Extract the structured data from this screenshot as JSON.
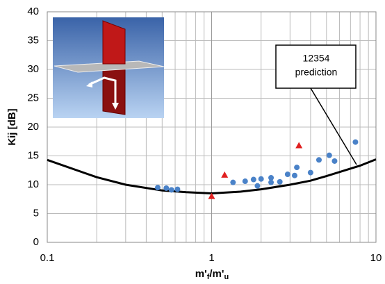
{
  "chart_data": {
    "type": "scatter-line",
    "y_label": "Kij [dB]",
    "x_label": [
      "m'",
      "f",
      "/m'",
      "u"
    ],
    "xlim": [
      0.1,
      10
    ],
    "xticks": [
      0.1,
      1,
      10
    ],
    "xminor": [
      0.2,
      0.3,
      0.4,
      0.5,
      0.6,
      0.7,
      0.8,
      0.9,
      2,
      3,
      4,
      5,
      6,
      7,
      8,
      9
    ],
    "x_log": true,
    "ylim": [
      0,
      40
    ],
    "yticks": [
      0,
      5,
      10,
      15,
      20,
      25,
      30,
      35,
      40
    ],
    "grid": true,
    "series": [
      {
        "kind": "line",
        "color": "#000000",
        "x": [
          0.1,
          0.2,
          0.3,
          0.5,
          0.7,
          1,
          1.5,
          2,
          3,
          4,
          5,
          7,
          8,
          10
        ],
        "values": [
          14.3,
          11.3,
          10.0,
          9.0,
          8.7,
          8.5,
          8.8,
          9.2,
          10.0,
          10.7,
          11.5,
          12.8,
          13.3,
          14.4
        ]
      },
      {
        "kind": "circle",
        "color": "#4a82c8",
        "x": [
          0.47,
          0.53,
          0.57,
          0.62,
          1.35,
          1.6,
          1.8,
          1.9,
          2.0,
          2.3,
          2.3,
          2.6,
          2.9,
          3.2,
          3.3,
          4.0,
          4.5,
          5.2,
          5.6,
          7.5
        ],
        "values": [
          9.5,
          9.4,
          9.1,
          9.2,
          10.4,
          10.6,
          10.9,
          9.8,
          11.0,
          11.2,
          10.4,
          10.5,
          11.8,
          11.6,
          13.0,
          12.1,
          14.3,
          15.1,
          14.1,
          17.4
        ]
      },
      {
        "kind": "triangle",
        "color": "#e02020",
        "x": [
          1.0,
          1.2,
          3.4
        ],
        "values": [
          8.0,
          11.7,
          16.8
        ]
      }
    ],
    "annotation": {
      "lines": [
        "12354",
        "prediction"
      ]
    }
  }
}
